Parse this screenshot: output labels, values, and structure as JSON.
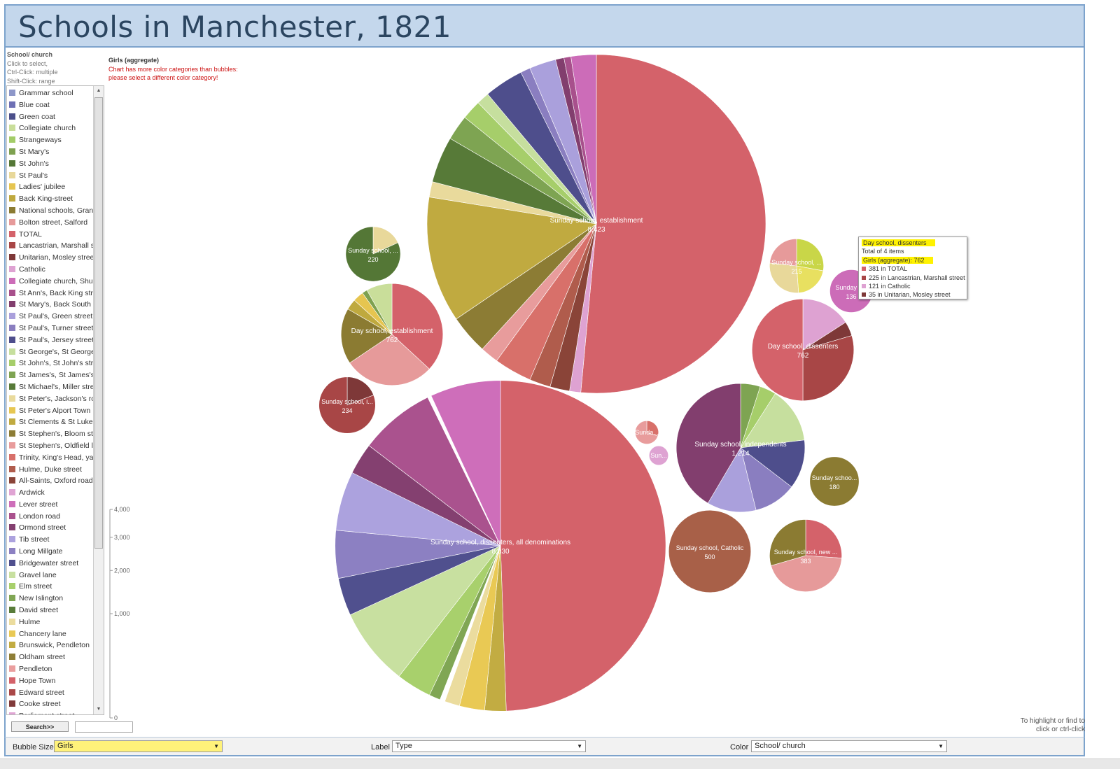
{
  "title": "Schools in Manchester, 1821",
  "legend": {
    "title": "School/ church",
    "instructions": [
      "Click to select,",
      "Ctrl-Click: multiple",
      "Shift-Click: range"
    ],
    "items": [
      {
        "label": "Grammar school",
        "color": "#8d97c9"
      },
      {
        "label": "Blue coat",
        "color": "#6e70b5"
      },
      {
        "label": "Green coat",
        "color": "#4b4f8b"
      },
      {
        "label": "Collegiate church",
        "color": "#c9de9a"
      },
      {
        "label": "Strangeways",
        "color": "#a3cc68"
      },
      {
        "label": "St Mary's",
        "color": "#7ea150"
      },
      {
        "label": "St John's",
        "color": "#547736"
      },
      {
        "label": "St Paul's",
        "color": "#e8d89a"
      },
      {
        "label": "Ladies' jubilee",
        "color": "#e6c550"
      },
      {
        "label": "Back King-street",
        "color": "#bfa93e"
      },
      {
        "label": "National schools, Granby",
        "color": "#8b7b32"
      },
      {
        "label": "Bolton street, Salford",
        "color": "#e69a9a"
      },
      {
        "label": "TOTAL",
        "color": "#d4626a"
      },
      {
        "label": "Lancastrian, Marshall street",
        "color": "#a84646"
      },
      {
        "label": "Unitarian, Mosley street",
        "color": "#7e3838"
      },
      {
        "label": "Catholic",
        "color": "#dea2d2"
      },
      {
        "label": "Collegiate church, Shude hill",
        "color": "#cc6cb8"
      },
      {
        "label": "St Ann's, Back King street",
        "color": "#a8508c"
      },
      {
        "label": "St Mary's, Back South",
        "color": "#823e6e"
      },
      {
        "label": "St Paul's, Green street",
        "color": "#aaa0dc"
      },
      {
        "label": "St Paul's, Turner street",
        "color": "#8a7ec0"
      },
      {
        "label": "St Paul's, Jersey street",
        "color": "#4e4e8c"
      },
      {
        "label": "St George's, St George",
        "color": "#c6df9e"
      },
      {
        "label": "St John's, St John's street",
        "color": "#a6ce6a"
      },
      {
        "label": "St James's, St James's",
        "color": "#7ea452"
      },
      {
        "label": "St Michael's, Miller street",
        "color": "#577a38"
      },
      {
        "label": "St Peter's, Jackson's row",
        "color": "#e9da9c"
      },
      {
        "label": "St Peter's Alport Town",
        "color": "#e7c752"
      },
      {
        "label": "St Clements & St Luke",
        "color": "#c0aa40"
      },
      {
        "label": "St Stephen's, Bloom street",
        "color": "#8c7c34"
      },
      {
        "label": "St Stephen's, Oldfield lane",
        "color": "#e89c9c"
      },
      {
        "label": "Trinity, King's Head, yard",
        "color": "#d8706a"
      },
      {
        "label": "Hulme, Duke street",
        "color": "#b05c4c"
      },
      {
        "label": "All-Saints, Oxford road",
        "color": "#8a4438"
      },
      {
        "label": "Ardwick",
        "color": "#e0a4d4"
      },
      {
        "label": "Lever street",
        "color": "#ce6eba"
      },
      {
        "label": "London road",
        "color": "#aa528e"
      },
      {
        "label": "Ormond street",
        "color": "#844070"
      },
      {
        "label": "Tib street",
        "color": "#aca2de"
      },
      {
        "label": "Long Millgate",
        "color": "#8c80c2"
      },
      {
        "label": "Bridgewater street",
        "color": "#50508e"
      },
      {
        "label": "Gravel lane",
        "color": "#c8e0a0"
      },
      {
        "label": "Elm street",
        "color": "#a8d06c"
      },
      {
        "label": "New Islington",
        "color": "#80a654"
      },
      {
        "label": "David street",
        "color": "#597c3a"
      },
      {
        "label": "Hulme",
        "color": "#ebdc9e"
      },
      {
        "label": "Chancery lane",
        "color": "#e9c954"
      },
      {
        "label": "Brunswick, Pendleton",
        "color": "#c2ac42"
      },
      {
        "label": "Oldham street",
        "color": "#8e7e36"
      },
      {
        "label": "Pendleton",
        "color": "#ea9e9e"
      },
      {
        "label": "Hope Town",
        "color": "#d4626a"
      },
      {
        "label": "Edward street",
        "color": "#aa4848"
      },
      {
        "label": "Cooke street",
        "color": "#803a3a"
      },
      {
        "label": "Parliament street",
        "color": "#e0a4d4"
      }
    ]
  },
  "chart_header": {
    "measure": "Girls (aggregate)",
    "warning_line1": "Chart has more color categories than bubbles:",
    "warning_line2": "please select a different color category!"
  },
  "chart_data": {
    "type": "bubble-pie",
    "measure": "Girls (aggregate)",
    "size_scale": {
      "ticks": [
        "4,000",
        "3,000",
        "2,000",
        "1,000",
        "0"
      ],
      "values": [
        4000,
        3000,
        2000,
        1000,
        0
      ]
    },
    "bubbles": [
      {
        "name": "Sunday school, establishment",
        "label_line1": "Sunday school, establishment",
        "label_line2": "8,423",
        "value": 8423,
        "slices": [
          [
            3850,
            "#d4626a"
          ],
          [
            80,
            "#dea2d2"
          ],
          [
            140,
            "#8a4438"
          ],
          [
            150,
            "#b05c4c"
          ],
          [
            270,
            "#d8706a"
          ],
          [
            130,
            "#e89c9c"
          ],
          [
            280,
            "#8c7c34"
          ],
          [
            900,
            "#c0aa40"
          ],
          [
            110,
            "#e9da9c"
          ],
          [
            330,
            "#577a38"
          ],
          [
            180,
            "#7ea452"
          ],
          [
            140,
            "#a6ce6a"
          ],
          [
            90,
            "#c6df9e"
          ],
          [
            280,
            "#4e4e8c"
          ],
          [
            70,
            "#8a7ec0"
          ],
          [
            190,
            "#aaa0dc"
          ],
          [
            60,
            "#823e6e"
          ],
          [
            50,
            "#a8508c"
          ],
          [
            180,
            "#cc6cb8"
          ]
        ]
      },
      {
        "name": "Sunday school, dissenters, all denominations",
        "label_line1": "Sunday school, dissenters, all denominations",
        "label_line2": "8,030",
        "value": 8030,
        "slices": [
          [
            4020,
            "#d4626a"
          ],
          [
            170,
            "#c2ac42"
          ],
          [
            200,
            "#e9c954"
          ],
          [
            120,
            "#ebdc9e"
          ],
          [
            40,
            "#ffffff"
          ],
          [
            90,
            "#80a654"
          ],
          [
            280,
            "#a8d06c"
          ],
          [
            620,
            "#c8e0a0"
          ],
          [
            300,
            "#50508e"
          ],
          [
            380,
            "#8c80c2"
          ],
          [
            470,
            "#aca2de"
          ],
          [
            250,
            "#844070"
          ],
          [
            600,
            "#aa528e"
          ],
          [
            30,
            "#ffffff"
          ],
          [
            560,
            "#ce6eba"
          ]
        ]
      },
      {
        "name": "Sunday school, independents",
        "label_line1": "Sunday school, independents",
        "label_line2": "1,214",
        "value": 1214,
        "slices": [
          [
            60,
            "#7ea452"
          ],
          [
            50,
            "#a6ce6a"
          ],
          [
            170,
            "#c6df9e"
          ],
          [
            150,
            "#4e4e8c"
          ],
          [
            130,
            "#8a7ec0"
          ],
          [
            150,
            "#aaa0dc"
          ],
          [
            504,
            "#823e6e"
          ]
        ]
      },
      {
        "name": "Day school, establishment",
        "label_line1": "Day school, establishment",
        "label_line2": "762",
        "value": 762,
        "slices": [
          [
            270,
            "#d4626a"
          ],
          [
            210,
            "#e69a9a"
          ],
          [
            130,
            "#8b7b32"
          ],
          [
            25,
            "#bfa93e"
          ],
          [
            25,
            "#e6c550"
          ],
          [
            12,
            "#7ea150"
          ],
          [
            60,
            "#c9de9a"
          ]
        ]
      },
      {
        "name": "Day school, dissenters",
        "label_line1": "Day school, dissenters",
        "label_line2": "762",
        "value": 762,
        "slices": [
          [
            121,
            "#dea2d2"
          ],
          [
            35,
            "#7e3838"
          ],
          [
            225,
            "#a84646"
          ],
          [
            381,
            "#d4626a"
          ]
        ]
      },
      {
        "name": "Sunday school, Catholic",
        "label_line1": "Sunday school, Catholic",
        "label_line2": "500",
        "value": 500,
        "slices": [
          [
            500,
            "#a86048"
          ]
        ]
      },
      {
        "name": "Sunday school, new ...",
        "label_line1": "Sunday school, new ...",
        "label_line2": "383",
        "value": 383,
        "slices": [
          [
            100,
            "#d4626a"
          ],
          [
            170,
            "#e69a9a"
          ],
          [
            113,
            "#8b7b32"
          ]
        ]
      },
      {
        "name": "Sunday school, i...",
        "label_line1": "Sunday school, i...",
        "label_line2": "234",
        "value": 234,
        "slices": [
          [
            45,
            "#7e3838"
          ],
          [
            189,
            "#a84646"
          ]
        ]
      },
      {
        "name": "Sunday school, ...",
        "label_line1": "Sunday school, ...",
        "label_line2": "220",
        "value": 220,
        "slices": [
          [
            40,
            "#e8d89a"
          ],
          [
            180,
            "#547736"
          ]
        ]
      },
      {
        "name": "Sunday school, ...",
        "label_line1": "Sunday school, ...",
        "label_line2": "215",
        "value": 215,
        "slices": [
          [
            60,
            "#c9d648"
          ],
          [
            45,
            "#e8e060"
          ],
          [
            60,
            "#e8d89a"
          ],
          [
            50,
            "#e69a9a"
          ]
        ]
      },
      {
        "name": "Sunday schoo...",
        "label_line1": "Sunday schoo...",
        "label_line2": "180",
        "value": 180,
        "slices": [
          [
            180,
            "#8b7b32"
          ]
        ]
      },
      {
        "name": "Sunday s...",
        "label_line1": "Sunday s...",
        "label_line2": "136",
        "value": 136,
        "slices": [
          [
            136,
            "#cc6cb8"
          ]
        ]
      },
      {
        "name": "Sunda...",
        "label_line1": "Sunda...",
        "label_line2": "",
        "value": 40,
        "slices": [
          [
            12,
            "#d8706a"
          ],
          [
            28,
            "#e89c9c"
          ]
        ]
      },
      {
        "name": "Sun...",
        "label_line1": "Sun...",
        "label_line2": "",
        "value": 28,
        "slices": [
          [
            28,
            "#dea2d2"
          ]
        ]
      }
    ]
  },
  "tooltip": {
    "title": "Day school, dissenters",
    "total": "Total of 4 items",
    "measure": "Girls (aggregate): 762",
    "rows": [
      {
        "text": "381 in TOTAL",
        "color": "#d4626a"
      },
      {
        "text": "225 in Lancastrian, Marshall street",
        "color": "#a84646"
      },
      {
        "text": "121 in Catholic",
        "color": "#dea2d2"
      },
      {
        "text": "35 in Unitarian, Mosley street",
        "color": "#7e3838"
      }
    ]
  },
  "search": {
    "button_label": "Search>>",
    "input_value": ""
  },
  "hint": {
    "line1": "To highlight or find to",
    "line2": "click or ctrl-click"
  },
  "controls": {
    "bubble_size_label": "Bubble Size",
    "bubble_size_value": "Girls",
    "label_label": "Label",
    "label_value": "Type",
    "color_label": "Color",
    "color_value": "School/ church"
  }
}
